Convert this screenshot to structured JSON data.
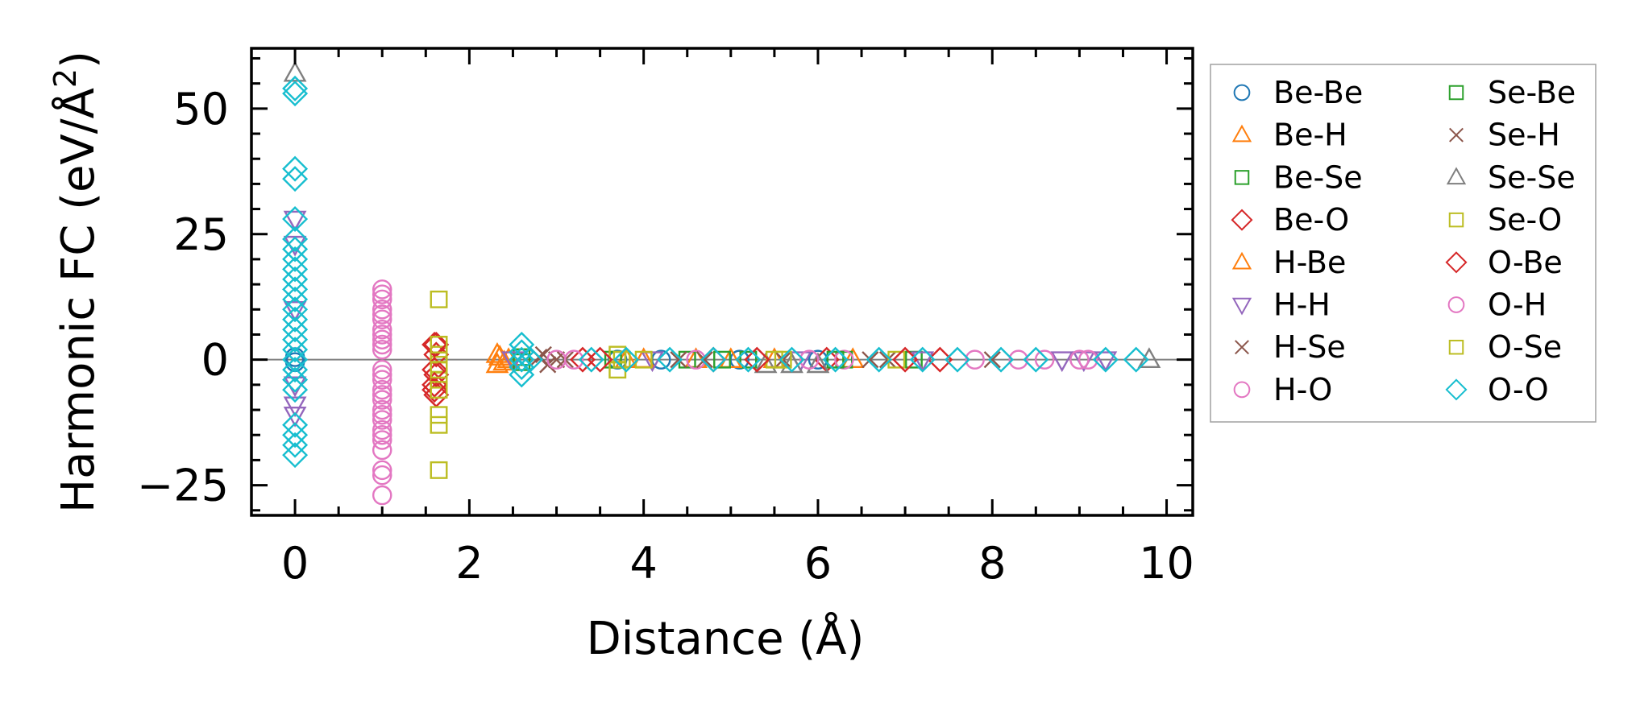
{
  "chart_data": {
    "type": "scatter",
    "xlabel": "Distance (Å)",
    "ylabel_main": "Harmonic FC (eV/Å",
    "ylabel_sup": "2",
    "ylabel_close": ")",
    "xlim": [
      -0.5,
      10.3
    ],
    "ylim": [
      -31,
      62
    ],
    "xticks": [
      0,
      2,
      4,
      6,
      8,
      10
    ],
    "xtick_labels": [
      "0",
      "2",
      "4",
      "6",
      "8",
      "10"
    ],
    "yticks": [
      -25,
      0,
      25,
      50
    ],
    "ytick_labels": [
      "−25",
      "0",
      "25",
      "50"
    ],
    "grid": false,
    "zero_line": true,
    "legend_position": "outside-right",
    "series": [
      {
        "name": "Be-Be",
        "marker": "circle",
        "color": "#1f77b4",
        "points": [
          [
            0,
            0.5
          ],
          [
            0,
            -0.5
          ],
          [
            3.7,
            0
          ],
          [
            4.2,
            0
          ],
          [
            5.1,
            0
          ],
          [
            6.0,
            0
          ]
        ]
      },
      {
        "name": "Be-H",
        "marker": "triangle-up",
        "color": "#ff7f0e",
        "points": [
          [
            2.35,
            0.5
          ],
          [
            2.4,
            -0.5
          ],
          [
            4.0,
            0
          ],
          [
            4.6,
            0
          ],
          [
            5.5,
            0
          ],
          [
            6.4,
            0
          ]
        ]
      },
      {
        "name": "Be-Se",
        "marker": "square",
        "color": "#2ca02c",
        "points": [
          [
            2.6,
            0.5
          ],
          [
            3.7,
            0
          ],
          [
            4.5,
            0
          ],
          [
            5.2,
            0
          ],
          [
            6.3,
            0
          ],
          [
            7.1,
            0
          ]
        ]
      },
      {
        "name": "Be-O",
        "marker": "diamond",
        "color": "#d62728",
        "points": [
          [
            1.62,
            3
          ],
          [
            1.62,
            1
          ],
          [
            1.62,
            -3
          ],
          [
            1.62,
            -7
          ],
          [
            3.3,
            0
          ],
          [
            4.8,
            0
          ],
          [
            6.1,
            0
          ],
          [
            7.4,
            0
          ]
        ]
      },
      {
        "name": "H-Be",
        "marker": "triangle-up",
        "color": "#ff7f0e",
        "points": [
          [
            2.32,
            1
          ],
          [
            2.32,
            -1
          ],
          [
            2.45,
            0
          ],
          [
            3.8,
            0
          ],
          [
            5.0,
            0
          ]
        ]
      },
      {
        "name": "H-H",
        "marker": "triangle-down",
        "color": "#9467bd",
        "points": [
          [
            0,
            28
          ],
          [
            0,
            23
          ],
          [
            0,
            10
          ],
          [
            0,
            -5
          ],
          [
            0,
            -9
          ],
          [
            0,
            -11
          ],
          [
            2.5,
            0
          ],
          [
            4.1,
            0
          ],
          [
            5.8,
            0
          ],
          [
            7.2,
            0
          ],
          [
            8.8,
            0
          ],
          [
            9.05,
            0
          ],
          [
            9.3,
            0
          ]
        ]
      },
      {
        "name": "H-Se",
        "marker": "x",
        "color": "#8c564b",
        "points": [
          [
            2.85,
            1
          ],
          [
            2.9,
            -1
          ],
          [
            3.0,
            0
          ],
          [
            4.4,
            0
          ],
          [
            5.6,
            0
          ],
          [
            6.8,
            0
          ],
          [
            8.0,
            0
          ]
        ]
      },
      {
        "name": "H-O",
        "marker": "circle",
        "color": "#e377c2",
        "points": [
          [
            1,
            14
          ],
          [
            1,
            12
          ],
          [
            1,
            10
          ],
          [
            1,
            8
          ],
          [
            1,
            6
          ],
          [
            1,
            4
          ],
          [
            1,
            2
          ],
          [
            1,
            -2
          ],
          [
            1,
            -4
          ],
          [
            1,
            -6
          ],
          [
            1,
            -8
          ],
          [
            1,
            -10
          ],
          [
            1,
            -12
          ],
          [
            1,
            -14
          ],
          [
            1,
            -16
          ],
          [
            1,
            -18
          ],
          [
            1,
            -22
          ],
          [
            1,
            -27
          ],
          [
            3.0,
            0
          ],
          [
            4.6,
            0
          ],
          [
            6.3,
            0
          ],
          [
            7.8,
            0
          ],
          [
            8.6,
            0
          ],
          [
            9.1,
            0
          ]
        ]
      },
      {
        "name": "Se-Be",
        "marker": "square",
        "color": "#2ca02c",
        "points": [
          [
            2.6,
            -0.5
          ],
          [
            3.65,
            0
          ],
          [
            4.9,
            0
          ],
          [
            6.2,
            0
          ]
        ]
      },
      {
        "name": "Se-H",
        "marker": "x",
        "color": "#8c564b",
        "points": [
          [
            2.8,
            0.5
          ],
          [
            3.1,
            0
          ],
          [
            4.7,
            0
          ],
          [
            6.6,
            0
          ]
        ]
      },
      {
        "name": "Se-Se",
        "marker": "triangle-up",
        "color": "#7f7f7f",
        "points": [
          [
            0,
            57
          ],
          [
            5.4,
            -1
          ],
          [
            5.7,
            -1
          ],
          [
            6.0,
            -1
          ],
          [
            9.8,
            0
          ]
        ]
      },
      {
        "name": "Se-O",
        "marker": "square",
        "color": "#bcbd22",
        "points": [
          [
            1.65,
            12
          ],
          [
            1.65,
            3
          ],
          [
            1.65,
            1
          ],
          [
            1.65,
            -1
          ],
          [
            1.65,
            -4
          ],
          [
            1.65,
            -11
          ],
          [
            1.65,
            -13
          ],
          [
            1.65,
            -22
          ],
          [
            3.7,
            1
          ],
          [
            3.7,
            -2
          ],
          [
            4.0,
            0
          ],
          [
            5.5,
            0
          ],
          [
            6.9,
            0
          ]
        ]
      },
      {
        "name": "O-Be",
        "marker": "diamond",
        "color": "#d62728",
        "points": [
          [
            1.6,
            3
          ],
          [
            1.6,
            -2
          ],
          [
            1.6,
            -5
          ],
          [
            1.6,
            -6
          ],
          [
            3.5,
            0
          ],
          [
            5.3,
            0
          ],
          [
            7.0,
            0
          ]
        ]
      },
      {
        "name": "O-H",
        "marker": "circle",
        "color": "#e377c2",
        "points": [
          [
            1,
            13
          ],
          [
            1,
            9
          ],
          [
            1,
            5
          ],
          [
            1,
            3
          ],
          [
            1,
            -3
          ],
          [
            1,
            -7
          ],
          [
            1,
            -11
          ],
          [
            1,
            -15
          ],
          [
            1,
            -23
          ],
          [
            3.2,
            0
          ],
          [
            5.9,
            0
          ],
          [
            8.3,
            0
          ],
          [
            9.0,
            0
          ]
        ]
      },
      {
        "name": "O-Se",
        "marker": "square",
        "color": "#bcbd22",
        "points": [
          [
            1.65,
            3
          ],
          [
            1.65,
            -2
          ],
          [
            1.65,
            -6
          ],
          [
            3.75,
            0
          ],
          [
            5.6,
            0
          ]
        ]
      },
      {
        "name": "O-O",
        "marker": "diamond",
        "color": "#17becf",
        "points": [
          [
            0,
            54
          ],
          [
            0,
            53
          ],
          [
            0,
            38
          ],
          [
            0,
            36
          ],
          [
            0,
            28
          ],
          [
            0,
            24
          ],
          [
            0,
            22
          ],
          [
            0,
            20
          ],
          [
            0,
            18
          ],
          [
            0,
            16
          ],
          [
            0,
            14
          ],
          [
            0,
            12
          ],
          [
            0,
            10
          ],
          [
            0,
            8
          ],
          [
            0,
            6
          ],
          [
            0,
            4
          ],
          [
            0,
            2
          ],
          [
            0,
            0
          ],
          [
            0,
            -2
          ],
          [
            0,
            -4
          ],
          [
            0,
            -6
          ],
          [
            0,
            -13
          ],
          [
            0,
            -15
          ],
          [
            0,
            -17
          ],
          [
            0,
            -19
          ],
          [
            2.6,
            3
          ],
          [
            2.6,
            1.5
          ],
          [
            2.6,
            0
          ],
          [
            2.6,
            -1.5
          ],
          [
            2.6,
            -3
          ],
          [
            2.7,
            0
          ],
          [
            3.4,
            0
          ],
          [
            3.8,
            0
          ],
          [
            4.3,
            0
          ],
          [
            4.8,
            0
          ],
          [
            5.2,
            0
          ],
          [
            5.7,
            0
          ],
          [
            6.2,
            0
          ],
          [
            6.7,
            0
          ],
          [
            7.2,
            0
          ],
          [
            7.6,
            0
          ],
          [
            8.1,
            0
          ],
          [
            8.5,
            0
          ],
          [
            9.3,
            0
          ],
          [
            9.65,
            0
          ]
        ]
      }
    ]
  }
}
